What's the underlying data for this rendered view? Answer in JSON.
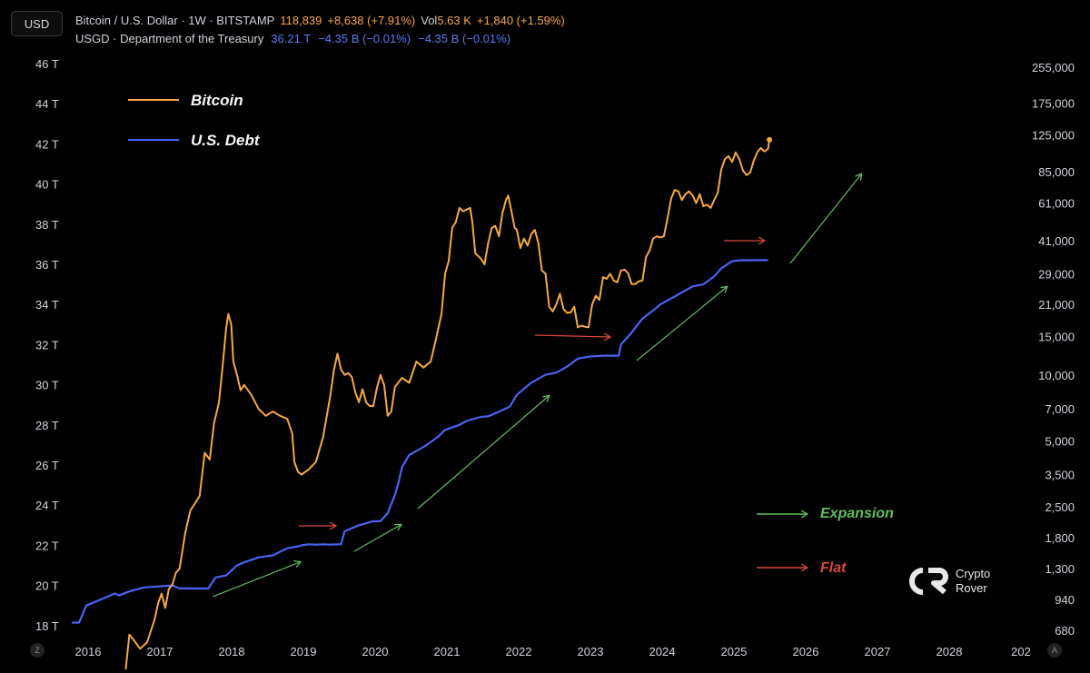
{
  "header": {
    "currency": "USD",
    "btc": {
      "symbol": "Bitcoin / U.S. Dollar · 1W · BITSTAMP",
      "price": "118,839",
      "change": "+8,638 (+7.91%)",
      "vol_label": "Vol",
      "vol_value": "5.63 K",
      "vol_change": "+1,840 (+1.59%)"
    },
    "debt": {
      "symbol": "USGD · Department of the Treasury",
      "value": "36.21 T",
      "change1": "−4.35 B (−0.01%)",
      "change2": "−4.35 B (−0.01%)"
    }
  },
  "chart_data": {
    "type": "line",
    "x_ticks": [
      "2016",
      "2017",
      "2018",
      "2019",
      "2020",
      "2021",
      "2022",
      "2023",
      "2024",
      "2025",
      "2026",
      "2027",
      "2028",
      "202"
    ],
    "left_axis": {
      "label_unit": "T",
      "ticks": [
        "46 T",
        "44 T",
        "42 T",
        "40 T",
        "38 T",
        "36 T",
        "34 T",
        "32 T",
        "30 T",
        "28 T",
        "26 T",
        "24 T",
        "22 T",
        "20 T",
        "18 T"
      ],
      "values": [
        46,
        44,
        42,
        40,
        38,
        36,
        34,
        32,
        30,
        28,
        26,
        24,
        22,
        20,
        18
      ]
    },
    "right_axis": {
      "scale": "log",
      "ticks": [
        "255,000",
        "175,000",
        "125,000",
        "85,000",
        "61,000",
        "41,000",
        "29,000",
        "21,000",
        "15,000",
        "10,000",
        "7,000",
        "5,000",
        "3,500",
        "2,500",
        "1,800",
        "1,300",
        "940",
        "680"
      ]
    },
    "series": [
      {
        "name": "Bitcoin",
        "color": "#f7a843",
        "axis": "right",
        "points": [
          [
            2016.55,
            450
          ],
          [
            2016.6,
            650
          ],
          [
            2016.65,
            620
          ],
          [
            2016.75,
            560
          ],
          [
            2016.85,
            600
          ],
          [
            2016.95,
            760
          ],
          [
            2017.0,
            900
          ],
          [
            2017.05,
            1000
          ],
          [
            2017.1,
            860
          ],
          [
            2017.15,
            1050
          ],
          [
            2017.2,
            1100
          ],
          [
            2017.25,
            1250
          ],
          [
            2017.3,
            1300
          ],
          [
            2017.38,
            1900
          ],
          [
            2017.45,
            2400
          ],
          [
            2017.52,
            2600
          ],
          [
            2017.58,
            2800
          ],
          [
            2017.65,
            4400
          ],
          [
            2017.72,
            4100
          ],
          [
            2017.78,
            6000
          ],
          [
            2017.85,
            7500
          ],
          [
            2017.9,
            11000
          ],
          [
            2017.95,
            16500
          ],
          [
            2017.98,
            19000
          ],
          [
            2018.02,
            17000
          ],
          [
            2018.05,
            11500
          ],
          [
            2018.1,
            10000
          ],
          [
            2018.15,
            8500
          ],
          [
            2018.2,
            9000
          ],
          [
            2018.3,
            8100
          ],
          [
            2018.4,
            7000
          ],
          [
            2018.5,
            6500
          ],
          [
            2018.6,
            6800
          ],
          [
            2018.7,
            6500
          ],
          [
            2018.8,
            6300
          ],
          [
            2018.87,
            5400
          ],
          [
            2018.9,
            4000
          ],
          [
            2018.95,
            3600
          ],
          [
            2019.0,
            3500
          ],
          [
            2019.1,
            3700
          ],
          [
            2019.2,
            4000
          ],
          [
            2019.3,
            5200
          ],
          [
            2019.4,
            8000
          ],
          [
            2019.45,
            10500
          ],
          [
            2019.5,
            12500
          ],
          [
            2019.55,
            10600
          ],
          [
            2019.6,
            10000
          ],
          [
            2019.65,
            10200
          ],
          [
            2019.7,
            9800
          ],
          [
            2019.75,
            8300
          ],
          [
            2019.8,
            7500
          ],
          [
            2019.85,
            8600
          ],
          [
            2019.9,
            7500
          ],
          [
            2019.95,
            7200
          ],
          [
            2020.0,
            7200
          ],
          [
            2020.05,
            8700
          ],
          [
            2020.1,
            10000
          ],
          [
            2020.15,
            9000
          ],
          [
            2020.2,
            6500
          ],
          [
            2020.25,
            6800
          ],
          [
            2020.3,
            8800
          ],
          [
            2020.4,
            9700
          ],
          [
            2020.5,
            9200
          ],
          [
            2020.6,
            11500
          ],
          [
            2020.7,
            10800
          ],
          [
            2020.8,
            11500
          ],
          [
            2020.85,
            13500
          ],
          [
            2020.9,
            16000
          ],
          [
            2020.95,
            19000
          ],
          [
            2021.0,
            29000
          ],
          [
            2021.05,
            33000
          ],
          [
            2021.1,
            47000
          ],
          [
            2021.15,
            50000
          ],
          [
            2021.2,
            58000
          ],
          [
            2021.25,
            56000
          ],
          [
            2021.3,
            57000
          ],
          [
            2021.35,
            58000
          ],
          [
            2021.38,
            50000
          ],
          [
            2021.42,
            36000
          ],
          [
            2021.5,
            34000
          ],
          [
            2021.55,
            32000
          ],
          [
            2021.6,
            40000
          ],
          [
            2021.65,
            47000
          ],
          [
            2021.7,
            48000
          ],
          [
            2021.75,
            43000
          ],
          [
            2021.8,
            55000
          ],
          [
            2021.85,
            63000
          ],
          [
            2021.88,
            66000
          ],
          [
            2021.92,
            57000
          ],
          [
            2021.97,
            47000
          ],
          [
            2022.0,
            46000
          ],
          [
            2022.05,
            38000
          ],
          [
            2022.1,
            42000
          ],
          [
            2022.15,
            39000
          ],
          [
            2022.2,
            44000
          ],
          [
            2022.25,
            46000
          ],
          [
            2022.3,
            40000
          ],
          [
            2022.35,
            30000
          ],
          [
            2022.4,
            29000
          ],
          [
            2022.45,
            20500
          ],
          [
            2022.5,
            19500
          ],
          [
            2022.55,
            21000
          ],
          [
            2022.6,
            23500
          ],
          [
            2022.65,
            20000
          ],
          [
            2022.7,
            19200
          ],
          [
            2022.75,
            19300
          ],
          [
            2022.8,
            20500
          ],
          [
            2022.85,
            16500
          ],
          [
            2022.9,
            16800
          ],
          [
            2022.95,
            16600
          ],
          [
            2023.0,
            16500
          ],
          [
            2023.05,
            21000
          ],
          [
            2023.1,
            23000
          ],
          [
            2023.15,
            22000
          ],
          [
            2023.2,
            28000
          ],
          [
            2023.25,
            27500
          ],
          [
            2023.3,
            29000
          ],
          [
            2023.35,
            27000
          ],
          [
            2023.4,
            26500
          ],
          [
            2023.45,
            30000
          ],
          [
            2023.5,
            30300
          ],
          [
            2023.55,
            29200
          ],
          [
            2023.6,
            26000
          ],
          [
            2023.65,
            26000
          ],
          [
            2023.7,
            26800
          ],
          [
            2023.75,
            27000
          ],
          [
            2023.8,
            34500
          ],
          [
            2023.85,
            37000
          ],
          [
            2023.9,
            42000
          ],
          [
            2023.95,
            43000
          ],
          [
            2024.0,
            42500
          ],
          [
            2024.05,
            43000
          ],
          [
            2024.1,
            52000
          ],
          [
            2024.15,
            64000
          ],
          [
            2024.2,
            70000
          ],
          [
            2024.25,
            69000
          ],
          [
            2024.3,
            63000
          ],
          [
            2024.35,
            67000
          ],
          [
            2024.4,
            69000
          ],
          [
            2024.45,
            66000
          ],
          [
            2024.5,
            61000
          ],
          [
            2024.55,
            67000
          ],
          [
            2024.6,
            59000
          ],
          [
            2024.65,
            60000
          ],
          [
            2024.7,
            58000
          ],
          [
            2024.75,
            63000
          ],
          [
            2024.8,
            68000
          ],
          [
            2024.85,
            87000
          ],
          [
            2024.9,
            97000
          ],
          [
            2024.95,
            100000
          ],
          [
            2025.0,
            94000
          ],
          [
            2025.05,
            104000
          ],
          [
            2025.1,
            97000
          ],
          [
            2025.15,
            86000
          ],
          [
            2025.2,
            82000
          ],
          [
            2025.25,
            84000
          ],
          [
            2025.3,
            95000
          ],
          [
            2025.35,
            104000
          ],
          [
            2025.4,
            109000
          ],
          [
            2025.45,
            105000
          ],
          [
            2025.5,
            108000
          ],
          [
            2025.52,
            118839
          ]
        ]
      },
      {
        "name": "U.S. Debt",
        "color": "#4a63f2",
        "axis": "left",
        "points": [
          [
            2015.8,
            18.15
          ],
          [
            2015.9,
            18.15
          ],
          [
            2016.0,
            19.0
          ],
          [
            2016.2,
            19.3
          ],
          [
            2016.4,
            19.6
          ],
          [
            2016.45,
            19.5
          ],
          [
            2016.6,
            19.7
          ],
          [
            2016.8,
            19.9
          ],
          [
            2017.0,
            19.95
          ],
          [
            2017.2,
            20.0
          ],
          [
            2017.3,
            19.85
          ],
          [
            2017.5,
            19.85
          ],
          [
            2017.7,
            19.85
          ],
          [
            2017.8,
            20.4
          ],
          [
            2017.95,
            20.5
          ],
          [
            2018.1,
            21.0
          ],
          [
            2018.2,
            21.15
          ],
          [
            2018.4,
            21.4
          ],
          [
            2018.6,
            21.5
          ],
          [
            2018.8,
            21.85
          ],
          [
            2018.95,
            21.95
          ],
          [
            2019.0,
            22.0
          ],
          [
            2019.1,
            22.05
          ],
          [
            2019.2,
            22.03
          ],
          [
            2019.3,
            22.05
          ],
          [
            2019.4,
            22.03
          ],
          [
            2019.5,
            22.05
          ],
          [
            2019.55,
            22.05
          ],
          [
            2019.6,
            22.7
          ],
          [
            2019.8,
            23.0
          ],
          [
            2019.9,
            23.1
          ],
          [
            2020.0,
            23.2
          ],
          [
            2020.1,
            23.2
          ],
          [
            2020.2,
            23.6
          ],
          [
            2020.3,
            24.5
          ],
          [
            2020.35,
            25.1
          ],
          [
            2020.4,
            25.9
          ],
          [
            2020.5,
            26.5
          ],
          [
            2020.7,
            26.9
          ],
          [
            2020.9,
            27.4
          ],
          [
            2021.0,
            27.75
          ],
          [
            2021.2,
            28.0
          ],
          [
            2021.3,
            28.2
          ],
          [
            2021.5,
            28.4
          ],
          [
            2021.6,
            28.43
          ],
          [
            2021.65,
            28.5
          ],
          [
            2021.9,
            28.9
          ],
          [
            2022.0,
            29.5
          ],
          [
            2022.2,
            30.1
          ],
          [
            2022.4,
            30.5
          ],
          [
            2022.55,
            30.6
          ],
          [
            2022.7,
            30.9
          ],
          [
            2022.85,
            31.3
          ],
          [
            2023.0,
            31.4
          ],
          [
            2023.2,
            31.45
          ],
          [
            2023.42,
            31.45
          ],
          [
            2023.45,
            32.0
          ],
          [
            2023.6,
            32.6
          ],
          [
            2023.75,
            33.3
          ],
          [
            2023.9,
            33.7
          ],
          [
            2024.0,
            34.0
          ],
          [
            2024.2,
            34.4
          ],
          [
            2024.3,
            34.6
          ],
          [
            2024.45,
            34.9
          ],
          [
            2024.6,
            35.0
          ],
          [
            2024.75,
            35.4
          ],
          [
            2024.85,
            35.8
          ],
          [
            2025.0,
            36.15
          ],
          [
            2025.1,
            36.2
          ],
          [
            2025.5,
            36.21
          ]
        ]
      }
    ],
    "legend": [
      {
        "label": "Bitcoin",
        "color": "#f7a843"
      },
      {
        "label": "U.S. Debt",
        "color": "#4a63f2"
      }
    ],
    "annotations": {
      "expansion_label": "Expansion",
      "flat_label": "Flat",
      "expansion_color": "#5fbf5f",
      "flat_color": "#d9483e"
    }
  },
  "brand": {
    "name_line1": "Crypto",
    "name_line2": "Rover"
  },
  "corner": {
    "left": "Z",
    "right": "A"
  }
}
